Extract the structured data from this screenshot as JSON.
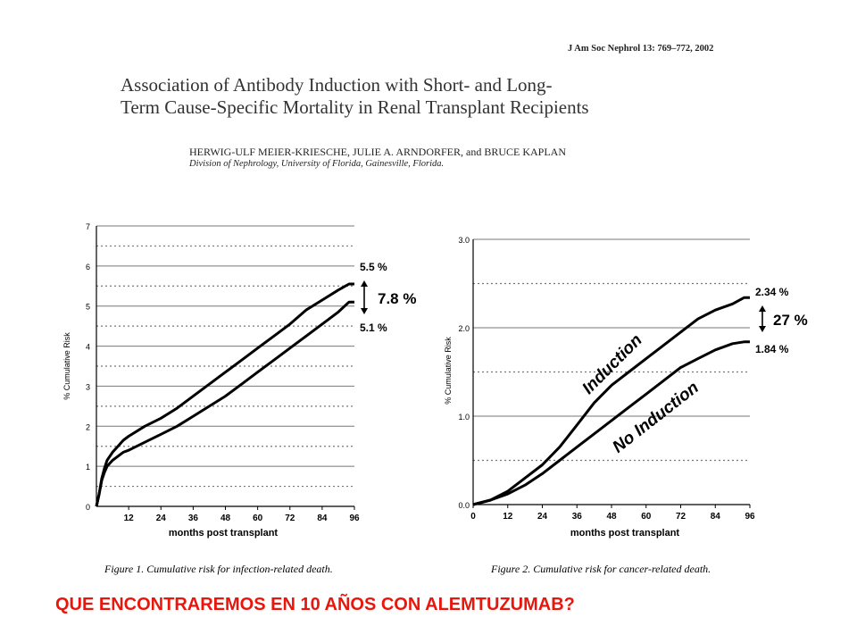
{
  "header": {
    "citation": "J Am Soc Nephrol 13: 769–772, 2002",
    "title_line1": "Association of Antibody Induction with Short- and Long-",
    "title_line2": "Term Cause-Specific Mortality in Renal Transplant Recipients",
    "authors": "HERWIG-ULF MEIER-KRIESCHE, JULIE A. ARNDORFER, and BRUCE KAPLAN",
    "affiliation": "Division of Nephrology, University of Florida, Gainesville, Florida."
  },
  "question": "QUE ENCONTRAREMOS EN 10 AÑOS CON ALEMTUZUMAB?",
  "colors": {
    "question": "#e8160c",
    "line": "#000000",
    "grid": "#777777"
  },
  "chart_data": [
    {
      "type": "line",
      "caption": "Figure 1. Cumulative risk for infection-related death.",
      "xlabel": "months post transplant",
      "ylabel": "% Cumulative Risk",
      "xlim": [
        0,
        96
      ],
      "ylim": [
        0,
        7
      ],
      "x_ticks": [
        "12",
        "24",
        "36",
        "48",
        "60",
        "72",
        "84",
        "96"
      ],
      "y_ticks": [
        "0",
        "1",
        "2",
        "3",
        "4",
        "5",
        "6",
        "7"
      ],
      "grid": true,
      "series": [
        {
          "x": [
            0,
            1,
            2,
            3,
            4,
            6,
            8,
            10,
            12,
            18,
            24,
            30,
            36,
            42,
            48,
            54,
            60,
            66,
            72,
            78,
            84,
            90,
            94,
            96
          ],
          "values": [
            0,
            0.3,
            0.7,
            0.95,
            1.15,
            1.35,
            1.5,
            1.65,
            1.75,
            2.0,
            2.2,
            2.45,
            2.75,
            3.05,
            3.35,
            3.65,
            3.95,
            4.25,
            4.55,
            4.9,
            5.15,
            5.4,
            5.55,
            5.55
          ],
          "end_label": "5.5 %"
        },
        {
          "x": [
            0,
            1,
            2,
            3,
            4,
            6,
            8,
            10,
            12,
            18,
            24,
            30,
            36,
            42,
            48,
            54,
            60,
            66,
            72,
            78,
            84,
            90,
            94,
            96
          ],
          "values": [
            0,
            0.3,
            0.65,
            0.85,
            1.0,
            1.15,
            1.25,
            1.35,
            1.4,
            1.6,
            1.8,
            2.0,
            2.25,
            2.5,
            2.75,
            3.05,
            3.35,
            3.65,
            3.95,
            4.25,
            4.55,
            4.85,
            5.1,
            5.1
          ],
          "end_label": "5.1 %"
        }
      ],
      "annotations": [
        "7.8 %"
      ]
    },
    {
      "type": "line",
      "caption": "Figure 2. Cumulative risk for cancer-related death.",
      "xlabel": "months post transplant",
      "ylabel": "% Cumulative Risk",
      "xlim": [
        0,
        96
      ],
      "ylim": [
        0,
        3.0
      ],
      "x_ticks": [
        "0",
        "12",
        "24",
        "36",
        "48",
        "60",
        "72",
        "84",
        "96"
      ],
      "y_ticks": [
        "0.0",
        "1.0",
        "2.0",
        "3.0"
      ],
      "grid": true,
      "series": [
        {
          "name": "Induction",
          "x": [
            0,
            6,
            12,
            18,
            24,
            30,
            36,
            42,
            48,
            54,
            60,
            66,
            72,
            78,
            84,
            90,
            94,
            96
          ],
          "values": [
            0,
            0.05,
            0.15,
            0.3,
            0.45,
            0.65,
            0.9,
            1.15,
            1.35,
            1.5,
            1.65,
            1.8,
            1.95,
            2.1,
            2.2,
            2.27,
            2.34,
            2.34
          ],
          "end_label": "2.34 %"
        },
        {
          "name": "No Induction",
          "x": [
            0,
            6,
            12,
            18,
            24,
            30,
            36,
            42,
            48,
            54,
            60,
            66,
            72,
            78,
            84,
            90,
            94,
            96
          ],
          "values": [
            0,
            0.05,
            0.12,
            0.22,
            0.35,
            0.5,
            0.65,
            0.8,
            0.95,
            1.1,
            1.25,
            1.4,
            1.55,
            1.65,
            1.75,
            1.82,
            1.84,
            1.84
          ],
          "end_label": "1.84 %"
        }
      ],
      "annotations": [
        "27 %"
      ]
    }
  ]
}
